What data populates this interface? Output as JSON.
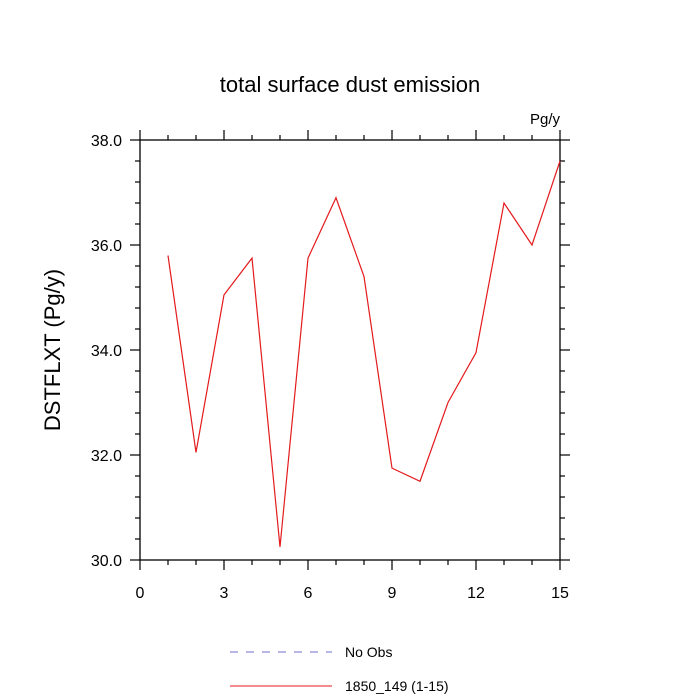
{
  "chart_data": {
    "type": "line",
    "title": "total surface dust emission",
    "units": "Pg/y",
    "xlabel": "",
    "ylabel": "DSTFLXT  (Pg/y)",
    "xlim": [
      0,
      15
    ],
    "ylim": [
      30.0,
      38.0
    ],
    "xticks": [
      0,
      3,
      6,
      9,
      12,
      15
    ],
    "xtick_labels": [
      "0",
      "3",
      "6",
      "9",
      "12",
      "15"
    ],
    "yticks": [
      30.0,
      32.0,
      34.0,
      36.0,
      38.0
    ],
    "ytick_labels": [
      "30.0",
      "32.0",
      "34.0",
      "36.0",
      "38.0"
    ],
    "grid": false,
    "legend_position": "bottom",
    "series": [
      {
        "name": "1850_149 (1-15)",
        "color": "#e41a1c",
        "dash": "solid",
        "x": [
          1,
          2,
          3,
          4,
          5,
          6,
          7,
          8,
          9,
          10,
          11,
          12,
          13,
          14,
          15
        ],
        "y": [
          35.8,
          32.05,
          35.05,
          35.75,
          30.25,
          35.75,
          36.9,
          35.4,
          31.75,
          31.5,
          33.0,
          33.95,
          36.8,
          36.0,
          37.6
        ]
      }
    ],
    "legend": [
      {
        "label": "No Obs",
        "color": "#6f6fd0",
        "dash": "dashed"
      },
      {
        "label": "1850_149 (1-15)",
        "color": "#e41a1c",
        "dash": "solid"
      }
    ]
  }
}
